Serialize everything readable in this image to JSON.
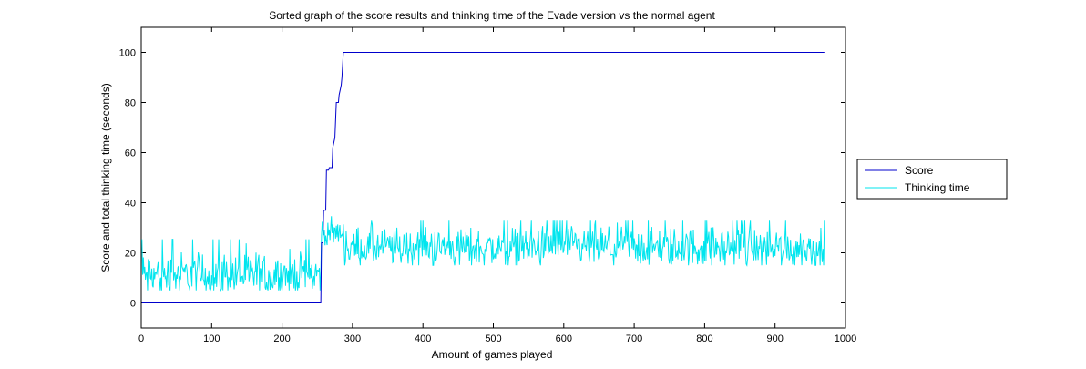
{
  "chart_data": {
    "type": "line",
    "title": "Sorted graph of the score results and thinking time of the Evade version vs the normal agent",
    "xlabel": "Amount of games played",
    "ylabel": "Score and total thinking time (seconds)",
    "xlim": [
      0,
      1000
    ],
    "ylim": [
      -10,
      110
    ],
    "xticks": [
      0,
      100,
      200,
      300,
      400,
      500,
      600,
      700,
      800,
      900,
      1000
    ],
    "yticks": [
      0,
      20,
      40,
      60,
      80,
      100
    ],
    "grid": false,
    "legend_position": "outside-right",
    "n_games": 970,
    "series": [
      {
        "name": "Score",
        "color": "#0000CC",
        "description": "Sorted score: 0 for games 1-255, then rising steeply to 100 by game ~288, then 100 until game 970",
        "points": [
          [
            1,
            0
          ],
          [
            255,
            0
          ],
          [
            256,
            24
          ],
          [
            258,
            24
          ],
          [
            259,
            37
          ],
          [
            262,
            37
          ],
          [
            263,
            53
          ],
          [
            266,
            53
          ],
          [
            267,
            54
          ],
          [
            271,
            54
          ],
          [
            272,
            62
          ],
          [
            275,
            66
          ],
          [
            277,
            80
          ],
          [
            280,
            80
          ],
          [
            281,
            83
          ],
          [
            284,
            87
          ],
          [
            285,
            90
          ],
          [
            287,
            100
          ],
          [
            970,
            100
          ]
        ]
      },
      {
        "name": "Thinking time",
        "color": "#00E5EE",
        "description": "Noisy thinking time per game: ~5-27 (mean ~11) for games 1-255, ~23-35 (mean ~28) for games 256-288, ~15-34 (mean ~22) for games 289-970",
        "segments": [
          {
            "from": 1,
            "to": 255,
            "mean": 11,
            "min": 5,
            "max": 27
          },
          {
            "from": 256,
            "to": 288,
            "mean": 28,
            "min": 23,
            "max": 35
          },
          {
            "from": 289,
            "to": 970,
            "mean": 22,
            "min": 15,
            "max": 34
          }
        ]
      }
    ]
  }
}
